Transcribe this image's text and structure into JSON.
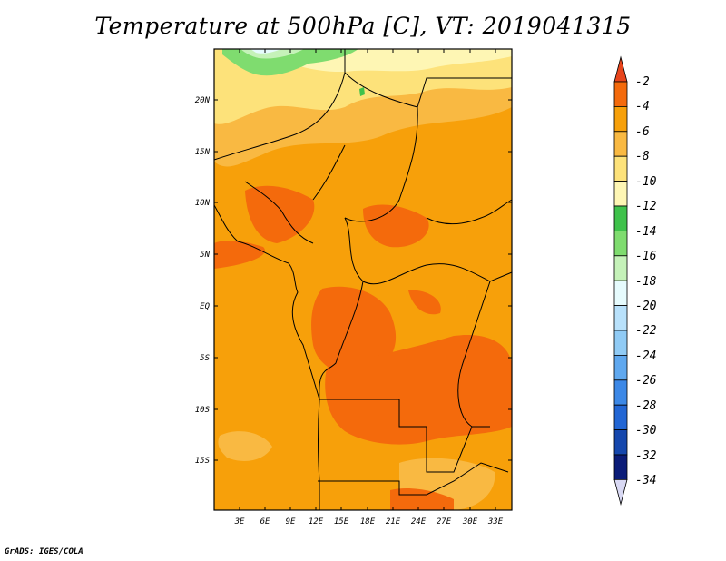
{
  "title": "Temperature at 500hPa [C], VT: 2019041315",
  "credit": "GrADS: IGES/COLA",
  "map": {
    "lat_labels": [
      "20N",
      "15N",
      "10N",
      "5N",
      "EQ",
      "5S",
      "10S",
      "15S"
    ],
    "lon_labels": [
      "3E",
      "6E",
      "9E",
      "12E",
      "15E",
      "18E",
      "21E",
      "24E",
      "27E",
      "30E",
      "33E"
    ]
  },
  "colorbar": {
    "labels": [
      "-2",
      "-4",
      "-6",
      "-8",
      "-10",
      "-12",
      "-14",
      "-16",
      "-18",
      "-20",
      "-22",
      "-24",
      "-26",
      "-28",
      "-30",
      "-32",
      "-34"
    ],
    "colors": [
      "#e8451c",
      "#f46a0c",
      "#f7a00a",
      "#f9b942",
      "#fde27a",
      "#fef6b4",
      "#3fc24b",
      "#7fdc6f",
      "#c5f2b9",
      "#e6fbfd",
      "#b8e1fb",
      "#90cbf5",
      "#5fa8ef",
      "#3c88e6",
      "#2266d4",
      "#1547ad",
      "#0b1c78",
      "#d8d8f3"
    ]
  }
}
